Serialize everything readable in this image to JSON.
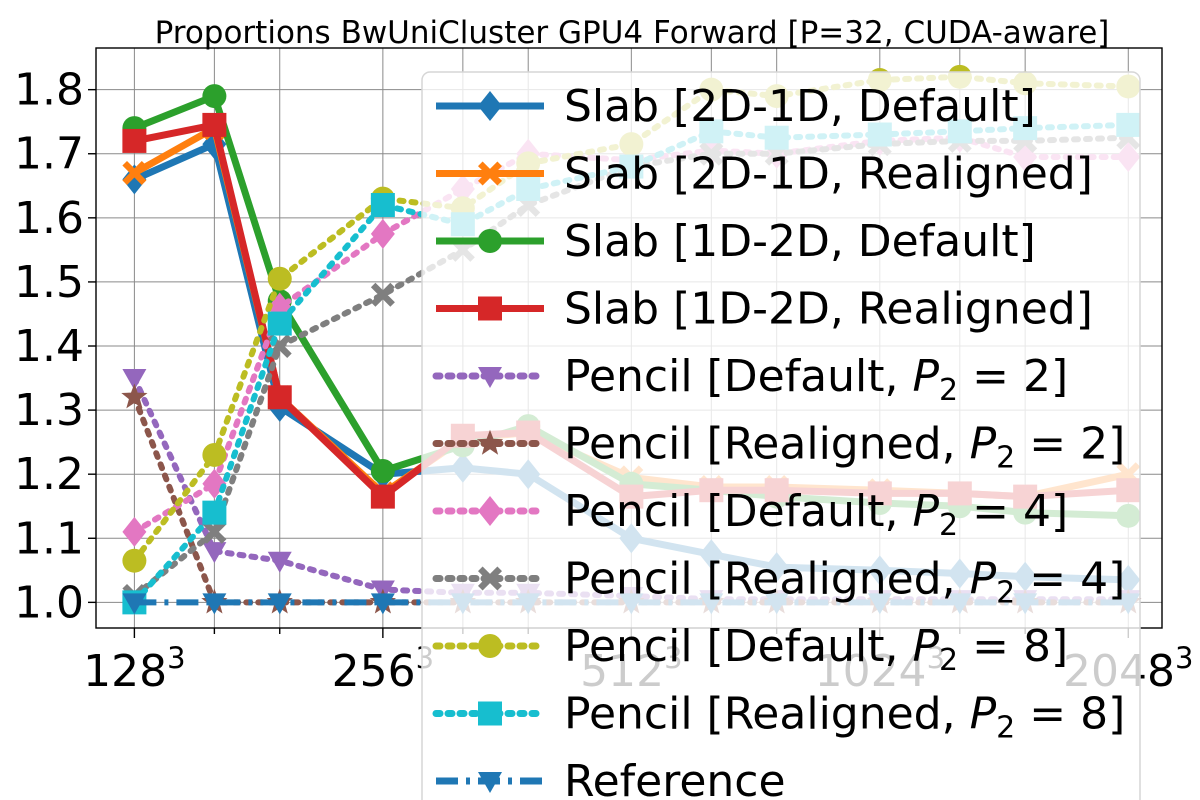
{
  "chart_data": {
    "type": "line",
    "title": "Proportions BwUniCluster GPU4 Forward [P=32, CUDA-aware]",
    "xlabel": "",
    "ylabel": "",
    "x": [
      128,
      160,
      192,
      256,
      320,
      384,
      512,
      640,
      768,
      1024,
      1280,
      1536,
      2048
    ],
    "x_ticks": [
      {
        "x": 128,
        "base": "128",
        "exp": "3"
      },
      {
        "x": 256,
        "base": "256",
        "exp": "3"
      },
      {
        "x": 512,
        "base": "512",
        "exp": "3"
      },
      {
        "x": 1024,
        "base": "1024",
        "exp": "3"
      },
      {
        "x": 2048,
        "base": "2048",
        "exp": "3"
      }
    ],
    "x_scale": "log2",
    "xlim": [
      115,
      2250
    ],
    "ylim": [
      0.96,
      1.865
    ],
    "y_ticks": [
      "1.0",
      "1.1",
      "1.2",
      "1.3",
      "1.4",
      "1.5",
      "1.6",
      "1.7",
      "1.8"
    ],
    "grid": true,
    "legend_position": "upper-right",
    "series": [
      {
        "name": "Slab [2D-1D, Default]",
        "color": "#1f77b4",
        "dash": "solid",
        "marker": "diamond",
        "values": [
          1.66,
          1.715,
          1.305,
          1.2,
          1.21,
          1.2,
          1.1,
          1.075,
          1.055,
          1.05,
          1.045,
          1.04,
          1.035
        ]
      },
      {
        "name": "Slab [2D-1D, Realigned]",
        "color": "#ff7f0e",
        "dash": "solid",
        "marker": "x",
        "values": [
          1.67,
          1.74,
          1.32,
          1.17,
          1.255,
          1.265,
          1.195,
          1.18,
          1.18,
          1.175,
          1.17,
          1.165,
          1.2
        ]
      },
      {
        "name": "Slab [1D-2D, Default]",
        "color": "#2ca02c",
        "dash": "solid",
        "marker": "circle",
        "values": [
          1.74,
          1.79,
          1.47,
          1.205,
          1.245,
          1.275,
          1.185,
          1.175,
          1.165,
          1.155,
          1.15,
          1.14,
          1.135
        ]
      },
      {
        "name": "Slab [1D-2D, Realigned]",
        "color": "#d62728",
        "dash": "solid",
        "marker": "square",
        "values": [
          1.72,
          1.745,
          1.32,
          1.165,
          1.26,
          1.265,
          1.165,
          1.175,
          1.175,
          1.17,
          1.17,
          1.165,
          1.175
        ]
      },
      {
        "name": "Pencil [Default, P",
        "sub": "2",
        "eq": " = 2]",
        "color": "#9467bd",
        "dash": "dotted",
        "marker": "triangle-down",
        "values": [
          1.35,
          1.08,
          1.065,
          1.02,
          1.015,
          1.015,
          1.01,
          1.005,
          1.005,
          1.005,
          1.005,
          1.005,
          1.005
        ]
      },
      {
        "name": "Pencil [Realigned, P",
        "sub": "2",
        "eq": " = 2]",
        "color": "#8c564b",
        "dash": "dotted",
        "marker": "star",
        "values": [
          1.32,
          1.0,
          1.0,
          1.0,
          1.0,
          1.0,
          1.0,
          1.0,
          1.0,
          1.0,
          1.0,
          1.0,
          1.0
        ]
      },
      {
        "name": "Pencil [Default, P",
        "sub": "2",
        "eq": " = 4]",
        "color": "#e377c2",
        "dash": "dotted",
        "marker": "diamond",
        "values": [
          1.11,
          1.185,
          1.46,
          1.575,
          1.645,
          1.7,
          1.69,
          1.705,
          1.7,
          1.72,
          1.725,
          1.695,
          1.695
        ]
      },
      {
        "name": "Pencil [Realigned, P",
        "sub": "2",
        "eq": " = 4]",
        "color": "#7f7f7f",
        "dash": "dotted",
        "marker": "x",
        "values": [
          1.01,
          1.11,
          1.4,
          1.48,
          1.55,
          1.62,
          1.68,
          1.7,
          1.7,
          1.715,
          1.72,
          1.72,
          1.725
        ]
      },
      {
        "name": "Pencil [Default, P",
        "sub": "2",
        "eq": " = 8]",
        "color": "#bcbd22",
        "dash": "dotted",
        "marker": "circle",
        "values": [
          1.065,
          1.23,
          1.505,
          1.63,
          1.615,
          1.685,
          1.715,
          1.8,
          1.79,
          1.815,
          1.82,
          1.81,
          1.805
        ]
      },
      {
        "name": "Pencil [Realigned, P",
        "sub": "2",
        "eq": " = 8]",
        "color": "#17becf",
        "dash": "dotted",
        "marker": "square",
        "values": [
          1.0,
          1.14,
          1.435,
          1.62,
          1.59,
          1.645,
          1.68,
          1.735,
          1.725,
          1.73,
          1.735,
          1.74,
          1.745
        ]
      },
      {
        "name": "Reference",
        "color": "#1f77b4",
        "dash": "dashdot",
        "marker": "triangle-down",
        "values": [
          1.0,
          1.0,
          1.0,
          1.0,
          1.0,
          1.0,
          1.0,
          1.0,
          1.0,
          1.0,
          1.0,
          1.0,
          1.0
        ]
      }
    ]
  }
}
